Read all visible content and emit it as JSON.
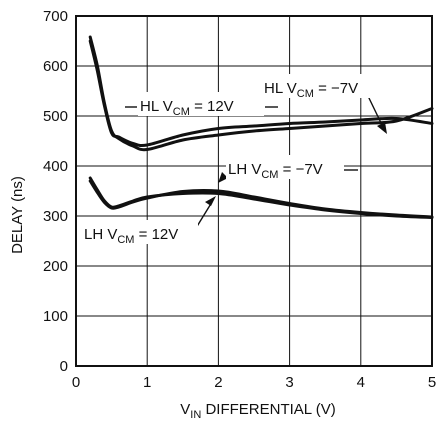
{
  "chart_data": {
    "type": "line",
    "title": "",
    "xlabel": {
      "main": "V",
      "sub": "IN",
      "rest": " DIFFERENTIAL (V)"
    },
    "ylabel": "DELAY (ns)",
    "xlim": [
      0,
      5
    ],
    "ylim": [
      0,
      700
    ],
    "x_ticks": [
      "0",
      "1",
      "2",
      "3",
      "4",
      "5"
    ],
    "y_ticks": [
      "0",
      "100",
      "200",
      "300",
      "400",
      "500",
      "600",
      "700"
    ],
    "grid": true,
    "series": [
      {
        "name": "HL VCM = 12V",
        "x": [
          0.2,
          0.3,
          0.4,
          0.5,
          0.6,
          0.8,
          1.0,
          1.5,
          2.0,
          2.5,
          3.0,
          3.5,
          4.0,
          4.5,
          5.0
        ],
        "y": [
          658,
          600,
          525,
          470,
          455,
          440,
          433,
          452,
          462,
          470,
          475,
          480,
          485,
          490,
          515
        ]
      },
      {
        "name": "HL VCM = −7V",
        "x": [
          0.2,
          0.3,
          0.4,
          0.5,
          0.6,
          0.8,
          1.0,
          1.5,
          2.0,
          2.5,
          3.0,
          3.5,
          4.0,
          4.5,
          5.0
        ],
        "y": [
          650,
          590,
          520,
          466,
          458,
          445,
          442,
          462,
          475,
          480,
          485,
          488,
          492,
          495,
          485
        ]
      },
      {
        "name": "LH VCM = 12V",
        "x": [
          0.2,
          0.3,
          0.4,
          0.5,
          0.6,
          0.8,
          1.0,
          1.5,
          2.0,
          2.5,
          3.0,
          3.5,
          4.0,
          4.5,
          5.0
        ],
        "y": [
          376,
          352,
          330,
          318,
          320,
          330,
          338,
          345,
          345,
          334,
          322,
          312,
          305,
          300,
          297
        ]
      },
      {
        "name": "LH VCM = −7V",
        "x": [
          0.2,
          0.3,
          0.4,
          0.5,
          0.6,
          0.8,
          1.0,
          1.5,
          2.0,
          2.5,
          3.0,
          3.5,
          4.0,
          4.5,
          5.0
        ],
        "y": [
          370,
          347,
          327,
          316,
          318,
          328,
          336,
          349,
          350,
          338,
          325,
          314,
          307,
          302,
          298
        ]
      }
    ],
    "annotations": [
      {
        "prefix": "HL V",
        "sub": "CM",
        "suffix": " = 12V"
      },
      {
        "prefix": "HL V",
        "sub": "CM",
        "suffix": " = −7V"
      },
      {
        "prefix": "LH V",
        "sub": "CM",
        "suffix": " = −7V"
      },
      {
        "prefix": "LH V",
        "sub": "CM",
        "suffix": " = 12V"
      }
    ],
    "colors": {
      "line": "#111111",
      "grid": "#111111",
      "background": "#ffffff"
    }
  }
}
